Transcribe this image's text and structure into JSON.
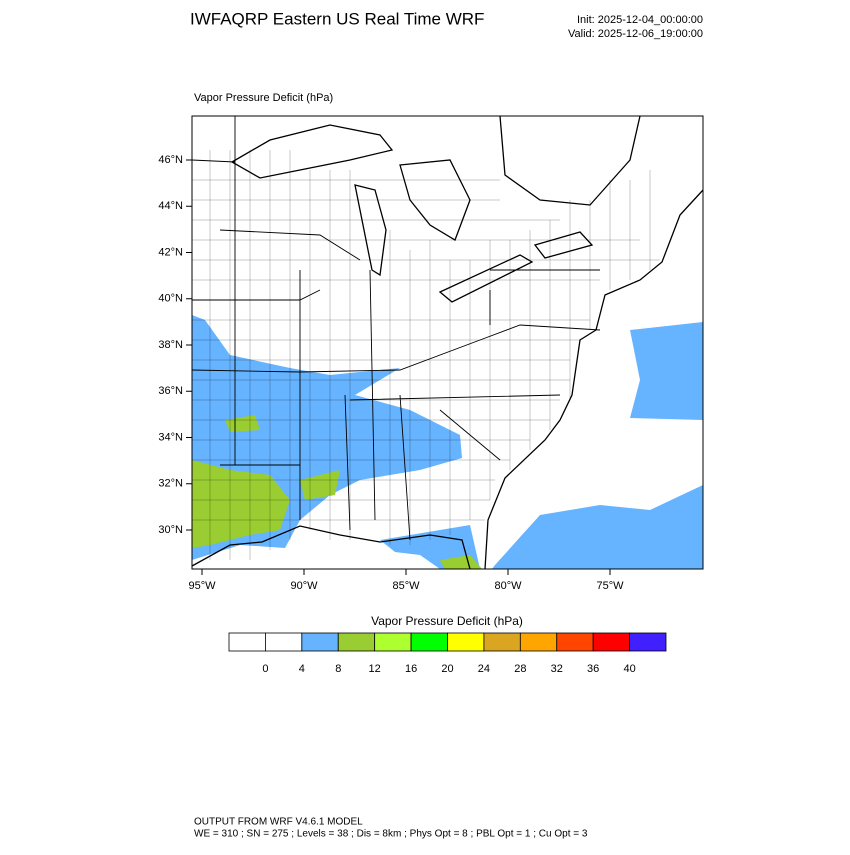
{
  "header": {
    "title": "IWFAQRP Eastern US Real Time WRF",
    "init": "Init: 2025-12-04_00:00:00",
    "valid": "Valid: 2025-12-06_19:00:00"
  },
  "map": {
    "subtitle": "Vapor Pressure Deficit   (hPa)",
    "lat_ticks": [
      {
        "value": 46,
        "label": "46°N"
      },
      {
        "value": 44,
        "label": "44°N"
      },
      {
        "value": 42,
        "label": "42°N"
      },
      {
        "value": 40,
        "label": "40°N"
      },
      {
        "value": 38,
        "label": "38°N"
      },
      {
        "value": 36,
        "label": "36°N"
      },
      {
        "value": 34,
        "label": "34°N"
      },
      {
        "value": 32,
        "label": "32°N"
      },
      {
        "value": 30,
        "label": "30°N"
      }
    ],
    "lon_ticks": [
      {
        "value": -95,
        "label": "95°W"
      },
      {
        "value": -90,
        "label": "90°W"
      },
      {
        "value": -85,
        "label": "85°W"
      },
      {
        "value": -80,
        "label": "80°W"
      },
      {
        "value": -75,
        "label": "75°W"
      }
    ]
  },
  "colorbar": {
    "label": "Vapor Pressure Deficit  (hPa)",
    "ticks": [
      0,
      4,
      8,
      12,
      16,
      20,
      24,
      28,
      32,
      36,
      40
    ],
    "colors": [
      "#ffffff",
      "#ffffff",
      "#66b3ff",
      "#9acd32",
      "#adff2f",
      "#00ff00",
      "#ffff00",
      "#daa520",
      "#ffa500",
      "#ff4500",
      "#ff0000",
      "#4020ff"
    ]
  },
  "footer": {
    "line1": "OUTPUT FROM WRF V4.6.1 MODEL",
    "line2": "WE = 310 ; SN = 275 ; Levels = 38 ; Dis = 8km ; Phys Opt = 8 ; PBL Opt = 1 ; Cu Opt = 3"
  }
}
